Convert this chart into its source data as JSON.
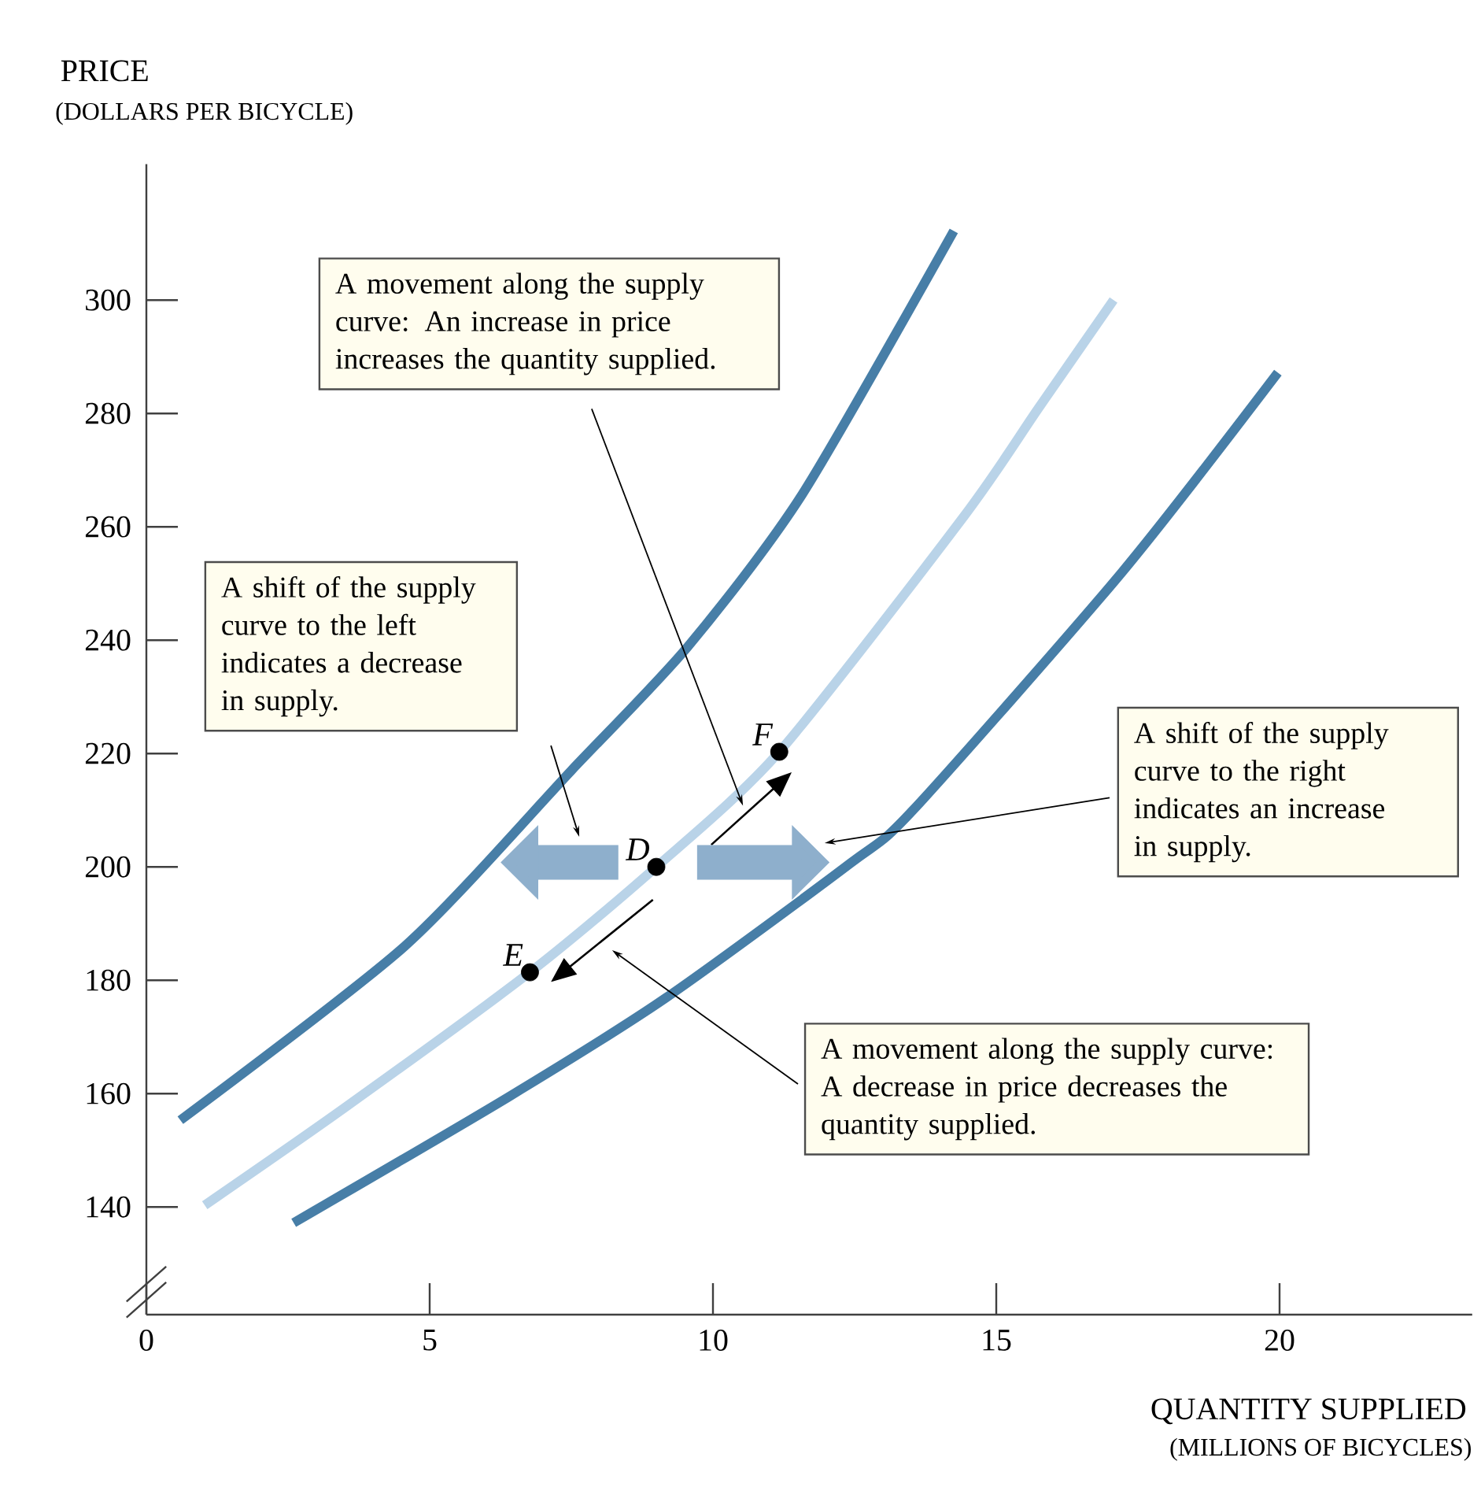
{
  "chart_data": {
    "type": "line",
    "xlabel": "QUANTITY SUPPLIED",
    "ylabel": "PRICE",
    "xlim": [
      0,
      23.4
    ],
    "ylim": [
      121,
      324
    ],
    "xticks": [
      0,
      5,
      10,
      15,
      20
    ],
    "yticks": [
      140,
      160,
      180,
      200,
      220,
      240,
      260,
      280,
      300
    ],
    "series": [
      {
        "color": "#477ea7",
        "x": [
          0.6,
          4.56,
          7.5,
          9.56,
          11.58,
          14.25
        ],
        "values": [
          155.3,
          186,
          217,
          238.9,
          265.8,
          312.2
        ]
      },
      {
        "color": "#b9d3e8",
        "x": [
          1.03,
          3.5,
          6.77,
          9.0,
          11.17,
          14.44,
          15.75,
          17.07
        ],
        "values": [
          140.3,
          157.5,
          181.4,
          200,
          220.3,
          262,
          281,
          300
        ]
      },
      {
        "color": "#477ea7",
        "x": [
          2.6,
          6.39,
          9.17,
          12.42,
          13.53,
          17.22,
          19.97
        ],
        "values": [
          137.2,
          159.4,
          176.9,
          200.6,
          210,
          252,
          287.2
        ]
      },
      {
        "type": "scatter",
        "color": "#000000",
        "x": [
          6.77,
          9.0,
          11.17
        ],
        "values": [
          181.4,
          200,
          220.3
        ]
      }
    ],
    "annotations": [
      "(DOLLARS PER BICYCLE)",
      "(MILLIONS OF BICYCLES)",
      {
        "text": "A movement along the supply curve: An increase in price increases the quantity supplied.",
        "x": 10.53,
        "y": 210.8
      },
      "A shift of the supply curve to the left indicates a decrease in supply.",
      "A shift of the supply curve to the right indicates an increase in supply.",
      "A movement along the supply curve: A decrease in price decreases the quantity supplied.",
      {
        "text": "E",
        "x": 6.77,
        "y": 181.4
      },
      {
        "text": "D",
        "x": 9.0,
        "y": 200
      },
      {
        "text": "F",
        "x": 11.17,
        "y": 220.3
      }
    ]
  }
}
